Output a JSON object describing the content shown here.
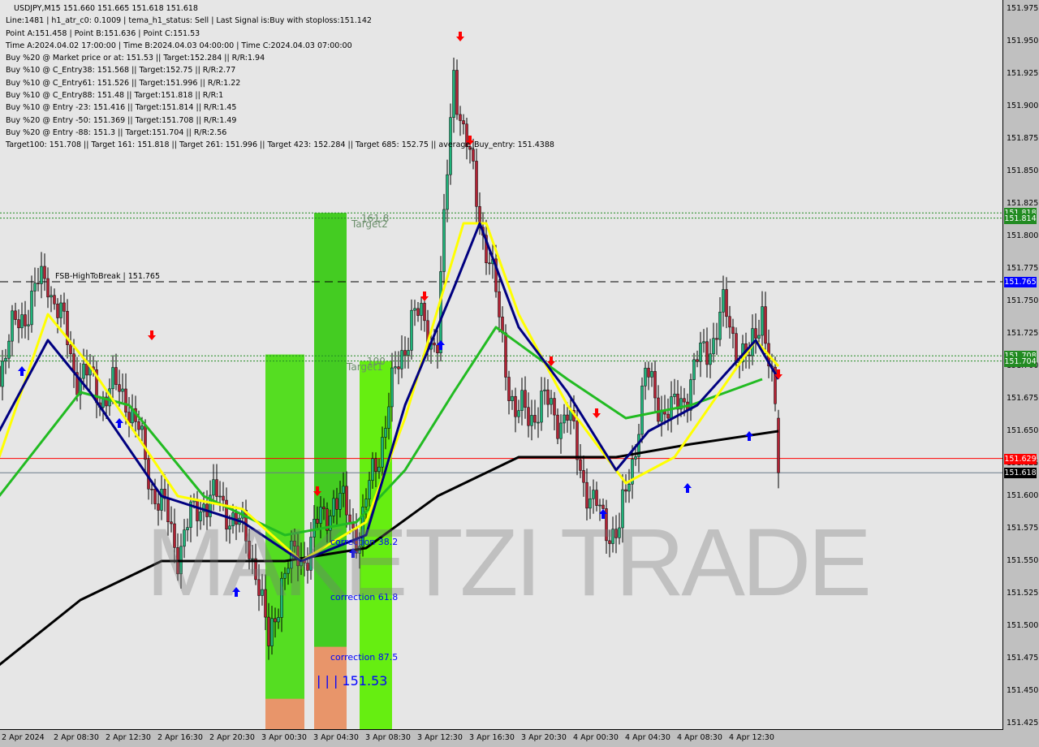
{
  "header": {
    "title": "USDJPY,M15  151.660 151.665 151.618 151.618",
    "lines": [
      "Line:1481 | h1_atr_c0: 0.1009 | tema_h1_status: Sell | Last Signal is:Buy with stoploss:151.142",
      "Point A:151.458 | Point B:151.636 | Point C:151.53",
      "Time A:2024.04.02 17:00:00 | Time B:2024.04.03 04:00:00 | Time C:2024.04.03 07:00:00",
      "Buy %20 @ Market price or at: 151.53 || Target:152.284 || R/R:1.94",
      "Buy %10 @ C_Entry38: 151.568 || Target:152.75 || R/R:2.77",
      "Buy %10 @ C_Entry61: 151.526 || Target:151.996 || R/R:1.22",
      "Buy %10 @ C_Entry88: 151.48 || Target:151.818 || R/R:1",
      "Buy %10 @ Entry -23: 151.416 || Target:151.814 || R/R:1.45",
      "Buy %20 @ Entry -50: 151.369 || Target:151.708 || R/R:1.49",
      "Buy %20 @ Entry -88: 151.3 || Target:151.704 || R/R:2.56",
      "Target100: 151.708 || Target 161: 151.818 || Target 261: 151.996 || Target 423: 152.284 || Target 685: 152.75 || average_Buy_entry: 151.4388"
    ]
  },
  "watermark": "MAKETZI TRADE",
  "annotations": {
    "fsb": "FSB-HighToBreak | 151.765",
    "target2": "Target2",
    "t2_level": "161.8",
    "target1": "Target1",
    "t1_level": "100",
    "corr38": "correction 38.2",
    "corr61": "correction 61.8",
    "corr87": "correction 87.5",
    "pointc": "| | | 151.53"
  },
  "chart_data": {
    "type": "candlestick",
    "symbol": "USDJPY",
    "timeframe": "M15",
    "ylim": [
      151.425,
      151.975
    ],
    "y_ticks": [
      "151.975",
      "151.950",
      "151.925",
      "151.900",
      "151.875",
      "151.850",
      "151.825",
      "151.800",
      "151.775",
      "151.750",
      "151.725",
      "151.700",
      "151.675",
      "151.650",
      "151.625",
      "151.600",
      "151.575",
      "151.550",
      "151.525",
      "151.500",
      "151.475",
      "151.450",
      "151.425"
    ],
    "x_ticks": [
      "2 Apr 2024",
      "2 Apr 08:30",
      "2 Apr 12:30",
      "2 Apr 16:30",
      "2 Apr 20:30",
      "3 Apr 00:30",
      "3 Apr 04:30",
      "3 Apr 08:30",
      "3 Apr 12:30",
      "3 Apr 16:30",
      "3 Apr 20:30",
      "4 Apr 00:30",
      "4 Apr 04:30",
      "4 Apr 08:30",
      "4 Apr 12:30"
    ],
    "close_path": [
      {
        "t": "2 Apr 04:15",
        "p": 151.7
      },
      {
        "t": "2 Apr 06:00",
        "p": 151.74
      },
      {
        "t": "2 Apr 08:00",
        "p": 151.77
      },
      {
        "t": "2 Apr 10:00",
        "p": 151.7
      },
      {
        "t": "2 Apr 12:00",
        "p": 151.68
      },
      {
        "t": "2 Apr 14:00",
        "p": 151.68
      },
      {
        "t": "2 Apr 16:00",
        "p": 151.61
      },
      {
        "t": "2 Apr 18:00",
        "p": 151.56
      },
      {
        "t": "2 Apr 20:00",
        "p": 151.6
      },
      {
        "t": "2 Apr 22:00",
        "p": 151.59
      },
      {
        "t": "3 Apr 00:00",
        "p": 151.55
      },
      {
        "t": "3 Apr 01:00",
        "p": 151.48
      },
      {
        "t": "3 Apr 02:00",
        "p": 151.54
      },
      {
        "t": "3 Apr 04:00",
        "p": 151.56
      },
      {
        "t": "3 Apr 06:00",
        "p": 151.6
      },
      {
        "t": "3 Apr 08:00",
        "p": 151.57
      },
      {
        "t": "3 Apr 10:00",
        "p": 151.66
      },
      {
        "t": "3 Apr 12:00",
        "p": 151.74
      },
      {
        "t": "3 Apr 14:00",
        "p": 151.72
      },
      {
        "t": "3 Apr 15:15",
        "p": 151.93
      },
      {
        "t": "3 Apr 16:00",
        "p": 151.88
      },
      {
        "t": "3 Apr 18:00",
        "p": 151.78
      },
      {
        "t": "3 Apr 20:00",
        "p": 151.66
      },
      {
        "t": "3 Apr 22:00",
        "p": 151.67
      },
      {
        "t": "4 Apr 00:00",
        "p": 151.66
      },
      {
        "t": "4 Apr 02:00",
        "p": 151.59
      },
      {
        "t": "4 Apr 04:00",
        "p": 151.57
      },
      {
        "t": "4 Apr 06:00",
        "p": 151.69
      },
      {
        "t": "4 Apr 08:00",
        "p": 151.66
      },
      {
        "t": "4 Apr 10:00",
        "p": 151.7
      },
      {
        "t": "4 Apr 12:00",
        "p": 151.74
      },
      {
        "t": "4 Apr 14:00",
        "p": 151.7
      },
      {
        "t": "4 Apr 15:00",
        "p": 151.75
      },
      {
        "t": "4 Apr 16:00",
        "p": 151.66
      },
      {
        "t": "4 Apr 16:15",
        "p": 151.618
      }
    ],
    "last_bar": {
      "open": 151.66,
      "high": 151.665,
      "low": 151.618,
      "close": 151.618
    },
    "moving_averages": [
      {
        "color": "#000000",
        "points": [
          {
            "t": "2 Apr 04:15",
            "p": 151.47
          },
          {
            "t": "2 Apr 10:30",
            "p": 151.52
          },
          {
            "t": "2 Apr 16:45",
            "p": 151.55
          },
          {
            "t": "3 Apr 02:15",
            "p": 151.55
          },
          {
            "t": "3 Apr 08:30",
            "p": 151.56
          },
          {
            "t": "3 Apr 14:00",
            "p": 151.6
          },
          {
            "t": "3 Apr 20:15",
            "p": 151.63
          },
          {
            "t": "4 Apr 03:45",
            "p": 151.63
          },
          {
            "t": "4 Apr 09:30",
            "p": 151.64
          },
          {
            "t": "4 Apr 16:15",
            "p": 151.65
          }
        ]
      },
      {
        "color": "#22bb22",
        "points": [
          {
            "t": "2 Apr 04:15",
            "p": 151.6
          },
          {
            "t": "2 Apr 10:30",
            "p": 151.68
          },
          {
            "t": "2 Apr 14:15",
            "p": 151.67
          },
          {
            "t": "2 Apr 20:00",
            "p": 151.6
          },
          {
            "t": "3 Apr 02:15",
            "p": 151.57
          },
          {
            "t": "3 Apr 07:45",
            "p": 151.58
          },
          {
            "t": "3 Apr 11:30",
            "p": 151.62
          },
          {
            "t": "3 Apr 15:15",
            "p": 151.68
          },
          {
            "t": "3 Apr 18:30",
            "p": 151.73
          },
          {
            "t": "4 Apr 00:00",
            "p": 151.69
          },
          {
            "t": "4 Apr 04:30",
            "p": 151.66
          },
          {
            "t": "4 Apr 09:30",
            "p": 151.67
          },
          {
            "t": "4 Apr 15:00",
            "p": 151.69
          }
        ]
      },
      {
        "color": "#ffff00",
        "points": [
          {
            "t": "2 Apr 04:15",
            "p": 151.63
          },
          {
            "t": "2 Apr 08:00",
            "p": 151.74
          },
          {
            "t": "2 Apr 11:15",
            "p": 151.7
          },
          {
            "t": "2 Apr 18:00",
            "p": 151.6
          },
          {
            "t": "2 Apr 23:00",
            "p": 151.59
          },
          {
            "t": "3 Apr 03:30",
            "p": 151.55
          },
          {
            "t": "3 Apr 08:30",
            "p": 151.58
          },
          {
            "t": "3 Apr 11:30",
            "p": 151.66
          },
          {
            "t": "3 Apr 16:00",
            "p": 151.81
          },
          {
            "t": "3 Apr 17:45",
            "p": 151.81
          },
          {
            "t": "3 Apr 20:15",
            "p": 151.74
          },
          {
            "t": "4 Apr 00:00",
            "p": 151.67
          },
          {
            "t": "4 Apr 04:30",
            "p": 151.61
          },
          {
            "t": "4 Apr 08:15",
            "p": 151.63
          },
          {
            "t": "4 Apr 14:30",
            "p": 151.72
          },
          {
            "t": "4 Apr 16:15",
            "p": 151.7
          }
        ]
      },
      {
        "color": "#000080",
        "points": [
          {
            "t": "2 Apr 04:15",
            "p": 151.65
          },
          {
            "t": "2 Apr 08:00",
            "p": 151.72
          },
          {
            "t": "2 Apr 11:15",
            "p": 151.68
          },
          {
            "t": "2 Apr 16:45",
            "p": 151.6
          },
          {
            "t": "2 Apr 23:00",
            "p": 151.58
          },
          {
            "t": "3 Apr 03:30",
            "p": 151.55
          },
          {
            "t": "3 Apr 08:30",
            "p": 151.57
          },
          {
            "t": "3 Apr 11:30",
            "p": 151.67
          },
          {
            "t": "3 Apr 15:15",
            "p": 151.76
          },
          {
            "t": "3 Apr 17:15",
            "p": 151.81
          },
          {
            "t": "3 Apr 20:15",
            "p": 151.73
          },
          {
            "t": "4 Apr 00:00",
            "p": 151.68
          },
          {
            "t": "4 Apr 03:45",
            "p": 151.62
          },
          {
            "t": "4 Apr 06:15",
            "p": 151.65
          },
          {
            "t": "4 Apr 10:00",
            "p": 151.67
          },
          {
            "t": "4 Apr 14:30",
            "p": 151.72
          },
          {
            "t": "4 Apr 16:15",
            "p": 151.69
          }
        ]
      }
    ],
    "levels": [
      {
        "price": 151.818,
        "label": "151.818",
        "color": "#228b22",
        "style": "dotted"
      },
      {
        "price": 151.814,
        "label": "151.814",
        "color": "#228b22",
        "style": "dotted"
      },
      {
        "price": 151.765,
        "label": "151.765",
        "color": "#0000ff",
        "style": "dashed"
      },
      {
        "price": 151.708,
        "label": "151.708",
        "color": "#228b22",
        "style": "dotted"
      },
      {
        "price": 151.704,
        "label": "151.704",
        "color": "#228b22",
        "style": "dotted"
      },
      {
        "price": 151.629,
        "label": "151.629",
        "color": "#ff0000",
        "style": "solid"
      },
      {
        "price": 151.618,
        "label": "151.618",
        "color": "#000000",
        "style": "solid"
      }
    ],
    "zones": [
      {
        "from": "3 Apr 00:45",
        "to": "3 Apr 03:45",
        "top": 151.709,
        "color": "#55dd22"
      },
      {
        "from": "3 Apr 04:30",
        "to": "3 Apr 07:00",
        "top": 151.818,
        "color": "#44cc22"
      },
      {
        "from": "3 Apr 08:00",
        "to": "3 Apr 10:30",
        "top": 151.704,
        "color": "#66ee11"
      },
      {
        "from": "3 Apr 00:45",
        "to": "3 Apr 03:45",
        "top": 151.444,
        "color": "#e8956a"
      },
      {
        "from": "3 Apr 04:30",
        "to": "3 Apr 07:00",
        "top": 151.484,
        "color": "#e8956a"
      }
    ],
    "signals": [
      {
        "t": "2 Apr 06:00",
        "p": 151.7,
        "dir": "up"
      },
      {
        "t": "2 Apr 13:30",
        "p": 151.66,
        "dir": "up"
      },
      {
        "t": "2 Apr 16:00",
        "p": 151.72,
        "dir": "down"
      },
      {
        "t": "2 Apr 22:30",
        "p": 151.53,
        "dir": "up"
      },
      {
        "t": "3 Apr 04:45",
        "p": 151.6,
        "dir": "down"
      },
      {
        "t": "3 Apr 07:30",
        "p": 151.56,
        "dir": "up"
      },
      {
        "t": "3 Apr 13:00",
        "p": 151.75,
        "dir": "down"
      },
      {
        "t": "3 Apr 14:15",
        "p": 151.72,
        "dir": "up"
      },
      {
        "t": "3 Apr 15:45",
        "p": 151.95,
        "dir": "down"
      },
      {
        "t": "3 Apr 16:30",
        "p": 151.87,
        "dir": "down"
      },
      {
        "t": "3 Apr 22:45",
        "p": 151.7,
        "dir": "down"
      },
      {
        "t": "4 Apr 02:15",
        "p": 151.66,
        "dir": "down"
      },
      {
        "t": "4 Apr 02:45",
        "p": 151.59,
        "dir": "up"
      },
      {
        "t": "4 Apr 09:15",
        "p": 151.61,
        "dir": "up"
      },
      {
        "t": "4 Apr 14:00",
        "p": 151.65,
        "dir": "up"
      },
      {
        "t": "4 Apr 16:15",
        "p": 151.69,
        "dir": "down"
      }
    ],
    "colors": {
      "bull": "#1fb37a",
      "bear": "#b22234",
      "wick": "#000000"
    }
  }
}
